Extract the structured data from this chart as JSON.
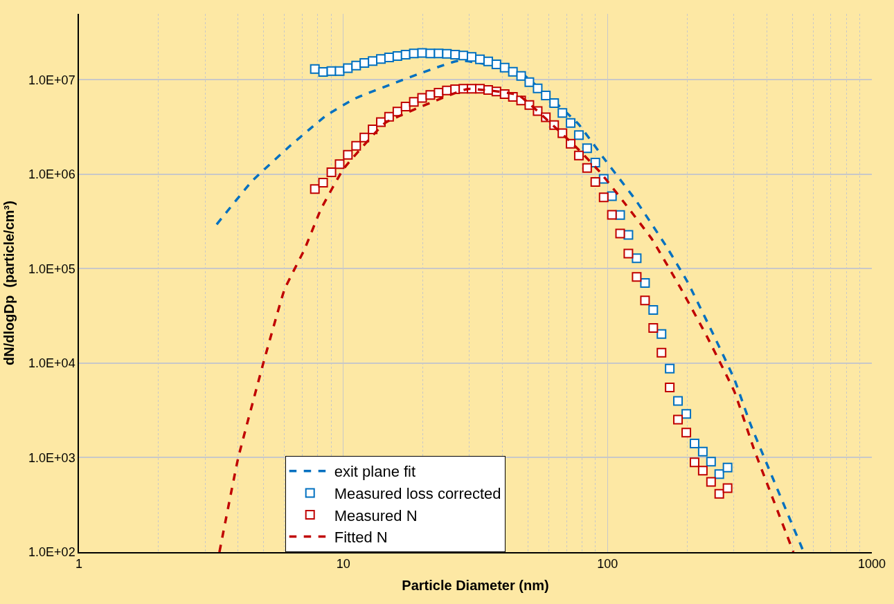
{
  "chart_data": {
    "type": "scatter",
    "xlabel": "Particle Diameter (nm)",
    "ylabel": "dN/dlogDp  (particle/cm³)",
    "log": "xy",
    "xlim": [
      1,
      1000
    ],
    "xticks": [
      1,
      10,
      100,
      1000
    ],
    "ylim": [
      100,
      50000000
    ],
    "yticks": [
      {
        "value": 100,
        "label": "1.0E+02"
      },
      {
        "value": 1000,
        "label": "1.0E+03"
      },
      {
        "value": 10000,
        "label": "1.0E+04"
      },
      {
        "value": 100000,
        "label": "1.0E+05"
      },
      {
        "value": 1000000,
        "label": "1.0E+06"
      },
      {
        "value": 10000000,
        "label": "1.0E+07"
      }
    ],
    "grid": true,
    "legend": "bottom",
    "series": [
      {
        "name": "exit plane fit",
        "type": "line",
        "color": "#0070c0",
        "marker": "none",
        "line_style": "dashed",
        "x": [
          3.32,
          4.52,
          6.24,
          8.61,
          11.1,
          27.4,
          46.0,
          77.5,
          95.9,
          128,
          167,
          201,
          250,
          302,
          348,
          550
        ],
        "values": [
          295000,
          848000,
          1960000,
          4180000,
          6360000,
          16000000,
          12400000,
          3420000,
          1530000,
          530000,
          172000,
          72000,
          20800,
          6750,
          2230,
          103
        ]
      },
      {
        "name": "Measured loss corrected",
        "color": "#0070c0",
        "marker": "square",
        "x": [
          7.81,
          8.39,
          9.02,
          9.69,
          10.41,
          11.19,
          12.02,
          12.92,
          13.88,
          14.91,
          16.03,
          17.22,
          18.5,
          19.88,
          21.36,
          22.96,
          24.67,
          26.5,
          28.48,
          30.6,
          32.9,
          35.35,
          37.98,
          40.81,
          43.85,
          47.1,
          50.6,
          54.4,
          58.4,
          62.8,
          67.5,
          72.5,
          77.9,
          83.7,
          89.9,
          96.7,
          103.9,
          111.6,
          119.9,
          128.9,
          138.6,
          148.9,
          160.0,
          171.9,
          184.7,
          198.6,
          213.4,
          229.3,
          246.4,
          264.7,
          284.5
        ],
        "values": [
          13000000,
          12100000,
          12400000,
          12400000,
          13300000,
          14200000,
          15100000,
          15800000,
          16600000,
          17300000,
          17900000,
          18500000,
          19000000,
          19300000,
          19000000,
          19000000,
          18900000,
          18500000,
          18100000,
          17500000,
          16500000,
          15700000,
          14600000,
          13500000,
          12200000,
          11000000,
          9460000,
          8130000,
          6840000,
          5680000,
          4470000,
          3490000,
          2600000,
          1890000,
          1330000,
          897000,
          587000,
          371000,
          228000,
          129000,
          70800,
          36600,
          20400,
          8770,
          3990,
          2900,
          1410,
          1160,
          908,
          670,
          787
        ]
      },
      {
        "name": "Measured N",
        "color": "#c00000",
        "marker": "square",
        "x": [
          7.81,
          8.39,
          9.02,
          9.69,
          10.41,
          11.19,
          12.02,
          12.92,
          13.88,
          14.91,
          16.03,
          17.22,
          18.5,
          19.88,
          21.36,
          22.96,
          24.67,
          26.5,
          28.48,
          30.6,
          32.9,
          35.35,
          37.98,
          40.81,
          43.85,
          47.1,
          50.6,
          54.4,
          58.4,
          62.8,
          67.5,
          72.5,
          77.9,
          83.7,
          89.9,
          96.7,
          103.9,
          111.6,
          119.9,
          128.9,
          138.6,
          148.9,
          160.0,
          171.9,
          184.7,
          198.6,
          213.4,
          229.3,
          246.4,
          264.7,
          284.5
        ],
        "values": [
          697000,
          817000,
          1050000,
          1280000,
          1610000,
          2000000,
          2450000,
          2990000,
          3570000,
          4060000,
          4620000,
          5220000,
          5850000,
          6430000,
          6910000,
          7310000,
          7730000,
          7940000,
          8040000,
          8040000,
          8040000,
          7820000,
          7520000,
          7060000,
          6610000,
          6040000,
          5410000,
          4680000,
          4020000,
          3320000,
          2720000,
          2110000,
          1580000,
          1170000,
          830000,
          569000,
          372000,
          236000,
          145000,
          81800,
          46100,
          23600,
          12900,
          5530,
          2530,
          1840,
          891,
          730,
          555,
          414,
          475
        ]
      },
      {
        "name": "Fitted N",
        "type": "line",
        "color": "#c00000",
        "marker": "none",
        "line_style": "dashed",
        "x": [
          3.4,
          4.0,
          4.98,
          6.0,
          7.14,
          8.23,
          10.0,
          14.4,
          29.5,
          46.0,
          77.5,
          94.1,
          116,
          147,
          188,
          237,
          302,
          357,
          505
        ],
        "values": [
          100,
          980,
          9930,
          60800,
          161000,
          427000,
          1130000,
          3500000,
          8000000,
          6900000,
          1840000,
          1040000,
          496000,
          207000,
          64000,
          19500,
          4990,
          1260,
          100
        ]
      }
    ]
  }
}
